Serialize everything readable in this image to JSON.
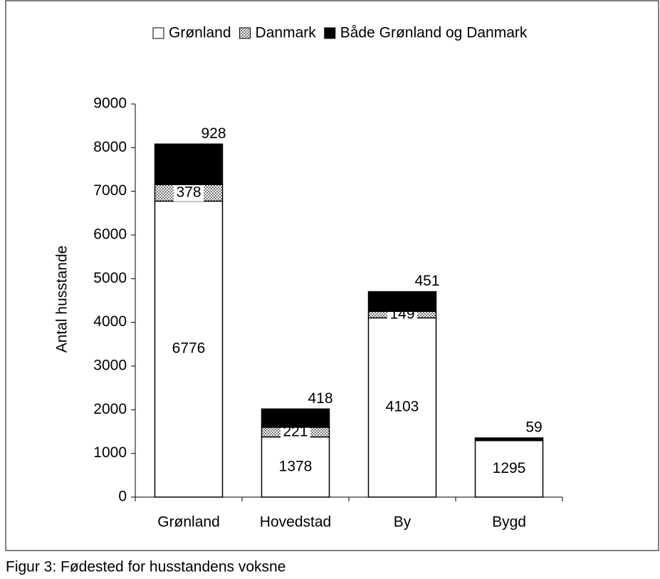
{
  "chart_data": {
    "type": "stacked_bar",
    "caption": "Figur 3: Fødested for husstandens voksne",
    "y_label": "Antal husstande",
    "categories": [
      "Grønland",
      "Hovedstad",
      "By",
      "Bygd"
    ],
    "series": [
      {
        "name": "Grønland",
        "color": "#ffffff",
        "values": [
          6776,
          1378,
          4103,
          1295
        ]
      },
      {
        "name": "Danmark",
        "color": "#999999",
        "values": [
          378,
          221,
          149,
          0
        ]
      },
      {
        "name": "Både Grønland og Danmark",
        "color": "#000000",
        "values": [
          928,
          418,
          451,
          59
        ]
      }
    ],
    "ylim": [
      0,
      9000
    ],
    "yticks": [
      0,
      1000,
      2000,
      3000,
      4000,
      5000,
      6000,
      7000,
      8000,
      9000
    ]
  }
}
